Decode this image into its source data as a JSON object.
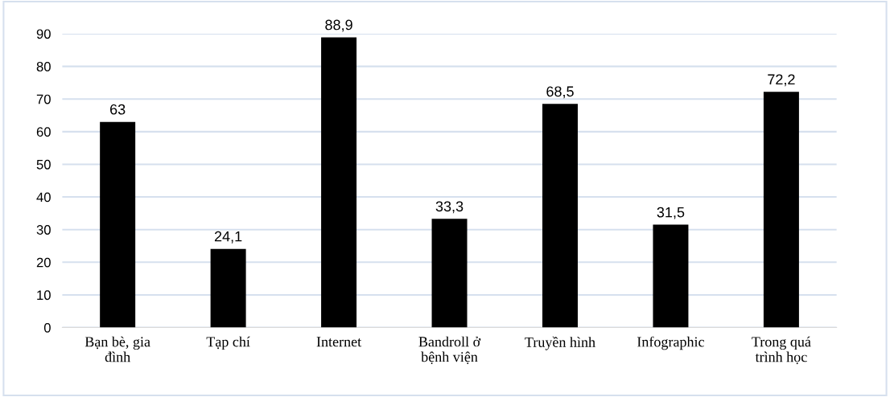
{
  "chart_data": {
    "type": "bar",
    "categories": [
      "Bạn bè, gia\nđình",
      "Tạp chí",
      "Internet",
      "Bandroll ở\nbệnh viện",
      "Truyền hình",
      "Infographic",
      "Trong quá\ntrình học"
    ],
    "values": [
      63,
      24.1,
      88.9,
      33.3,
      68.5,
      31.5,
      72.2
    ],
    "value_labels": [
      "63",
      "24,1",
      "88,9",
      "33,3",
      "68,5",
      "31,5",
      "72,2"
    ],
    "color": "#000000",
    "ylim": [
      0,
      90
    ],
    "yticks": [
      0,
      10,
      20,
      30,
      40,
      50,
      60,
      70,
      80,
      90
    ],
    "grid": "y"
  }
}
